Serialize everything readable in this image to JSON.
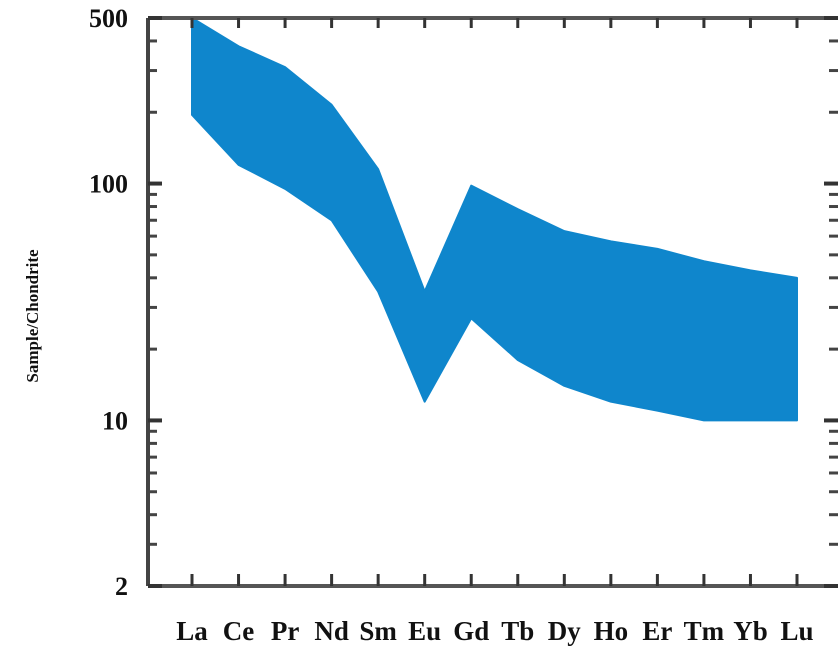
{
  "chart_data": {
    "type": "area",
    "title": "",
    "xlabel": "",
    "ylabel": "Sample/Chondrite",
    "yscale": "log",
    "ylim": [
      2,
      500
    ],
    "yticks": [
      {
        "value": 2,
        "label": "2"
      },
      {
        "value": 10,
        "label": "10"
      },
      {
        "value": 100,
        "label": "100"
      },
      {
        "value": 500,
        "label": "500"
      }
    ],
    "categories": [
      "La",
      "Ce",
      "Pr",
      "Nd",
      "Sm",
      "Eu",
      "Gd",
      "Tb",
      "Dy",
      "Ho",
      "Er",
      "Tm",
      "Yb",
      "Lu"
    ],
    "series": [
      {
        "upper": [
          500,
          380,
          310,
          215,
          115,
          35,
          98,
          78,
          63,
          57,
          53,
          47,
          43,
          40
        ],
        "lower": [
          195,
          120,
          95,
          70,
          35,
          12,
          27,
          18,
          14,
          12,
          11,
          10,
          10,
          10
        ]
      }
    ],
    "fill_color": "#0f86cc",
    "grid": false
  }
}
